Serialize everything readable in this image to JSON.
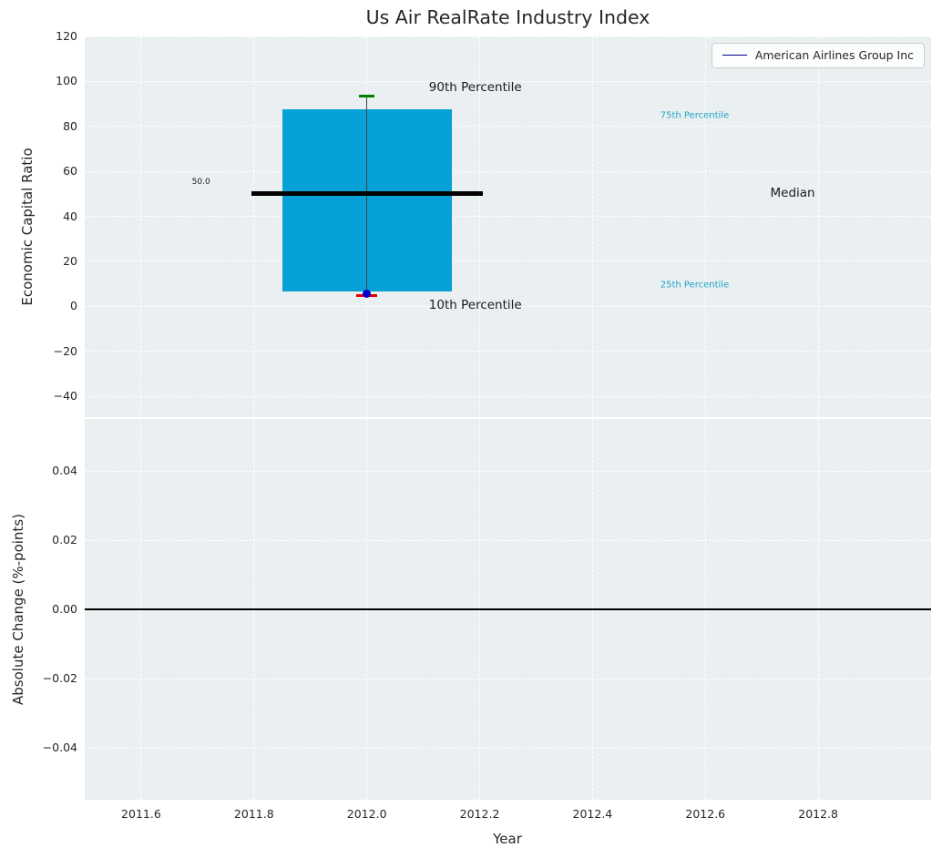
{
  "chart_data": {
    "type": "box",
    "title": "Us Air RealRate Industry Index",
    "xlabel": "Year",
    "x": {
      "lim": [
        2011.5,
        2013.0
      ],
      "ticks": [
        {
          "v": 2011.6,
          "label": "2011.6"
        },
        {
          "v": 2011.8,
          "label": "2011.8"
        },
        {
          "v": 2012.0,
          "label": "2012.0"
        },
        {
          "v": 2012.2,
          "label": "2012.2"
        },
        {
          "v": 2012.4,
          "label": "2012.4"
        },
        {
          "v": 2012.6,
          "label": "2012.6"
        },
        {
          "v": 2012.8,
          "label": "2012.8"
        }
      ]
    },
    "panels": {
      "capital_ratio": {
        "ylabel": "Economic Capital Ratio",
        "ylim": [
          -49.3,
          120
        ],
        "yticks": [
          {
            "v": 120,
            "label": "120"
          },
          {
            "v": 100,
            "label": "100"
          },
          {
            "v": 80,
            "label": "80"
          },
          {
            "v": 60,
            "label": "60"
          },
          {
            "v": 40,
            "label": "40"
          },
          {
            "v": 20,
            "label": "20"
          },
          {
            "v": 0,
            "label": "0"
          },
          {
            "v": -20,
            "label": "−20"
          },
          {
            "v": -40,
            "label": "−40"
          }
        ],
        "box": {
          "year": 2012.0,
          "p10": 4.8,
          "p25": 6.5,
          "median": 50.0,
          "p75": 87.5,
          "p90": 93.5,
          "company_value": 5.5,
          "box_color": "#06a2d7",
          "median_color": "#000000",
          "whisker_color": "#444444",
          "p90_cap_color": "#008000",
          "p10_cap_color": "#e00000",
          "company_dot_color": "#0000cd",
          "box_width_years": 0.3,
          "median_width_years": 0.41,
          "cap_width_years": 0.028
        },
        "annotations": [
          {
            "id": "p90-label",
            "text": "90th Percentile",
            "year": 2012.11,
            "value": 97.3,
            "color": "#1a1a1a",
            "size": 13.5
          },
          {
            "id": "p75-label",
            "text": "75th Percentile",
            "year": 2012.52,
            "value": 84.8,
            "color": "#20a4c8",
            "size": 10
          },
          {
            "id": "median-value-label",
            "text": "50.0",
            "year": 2011.69,
            "value": 55.2,
            "color": "#1a1a1a",
            "size": 9
          },
          {
            "id": "median-label",
            "text": "Median",
            "year": 2012.715,
            "value": 50.3,
            "color": "#1a1a1a",
            "size": 13.5
          },
          {
            "id": "p25-label",
            "text": "25th Percentile",
            "year": 2012.52,
            "value": 9.4,
            "color": "#20a4c8",
            "size": 10
          },
          {
            "id": "p10-label",
            "text": "10th Percentile",
            "year": 2012.11,
            "value": 0.5,
            "color": "#1a1a1a",
            "size": 13.5
          }
        ],
        "legend": {
          "label": "American Airlines Group Inc",
          "line_color": "#00008b"
        }
      },
      "absolute_change": {
        "ylabel": "Absolute Change (%-points)",
        "ylim": [
          -0.055,
          0.055
        ],
        "yticks": [
          {
            "v": 0.04,
            "label": "0.04"
          },
          {
            "v": 0.02,
            "label": "0.02"
          },
          {
            "v": 0,
            "label": "0.00"
          },
          {
            "v": -0.02,
            "label": "−0.02"
          },
          {
            "v": -0.04,
            "label": "−0.04"
          }
        ],
        "zero_line": {
          "value": 0.0,
          "color": "#000000"
        },
        "series": []
      }
    }
  }
}
